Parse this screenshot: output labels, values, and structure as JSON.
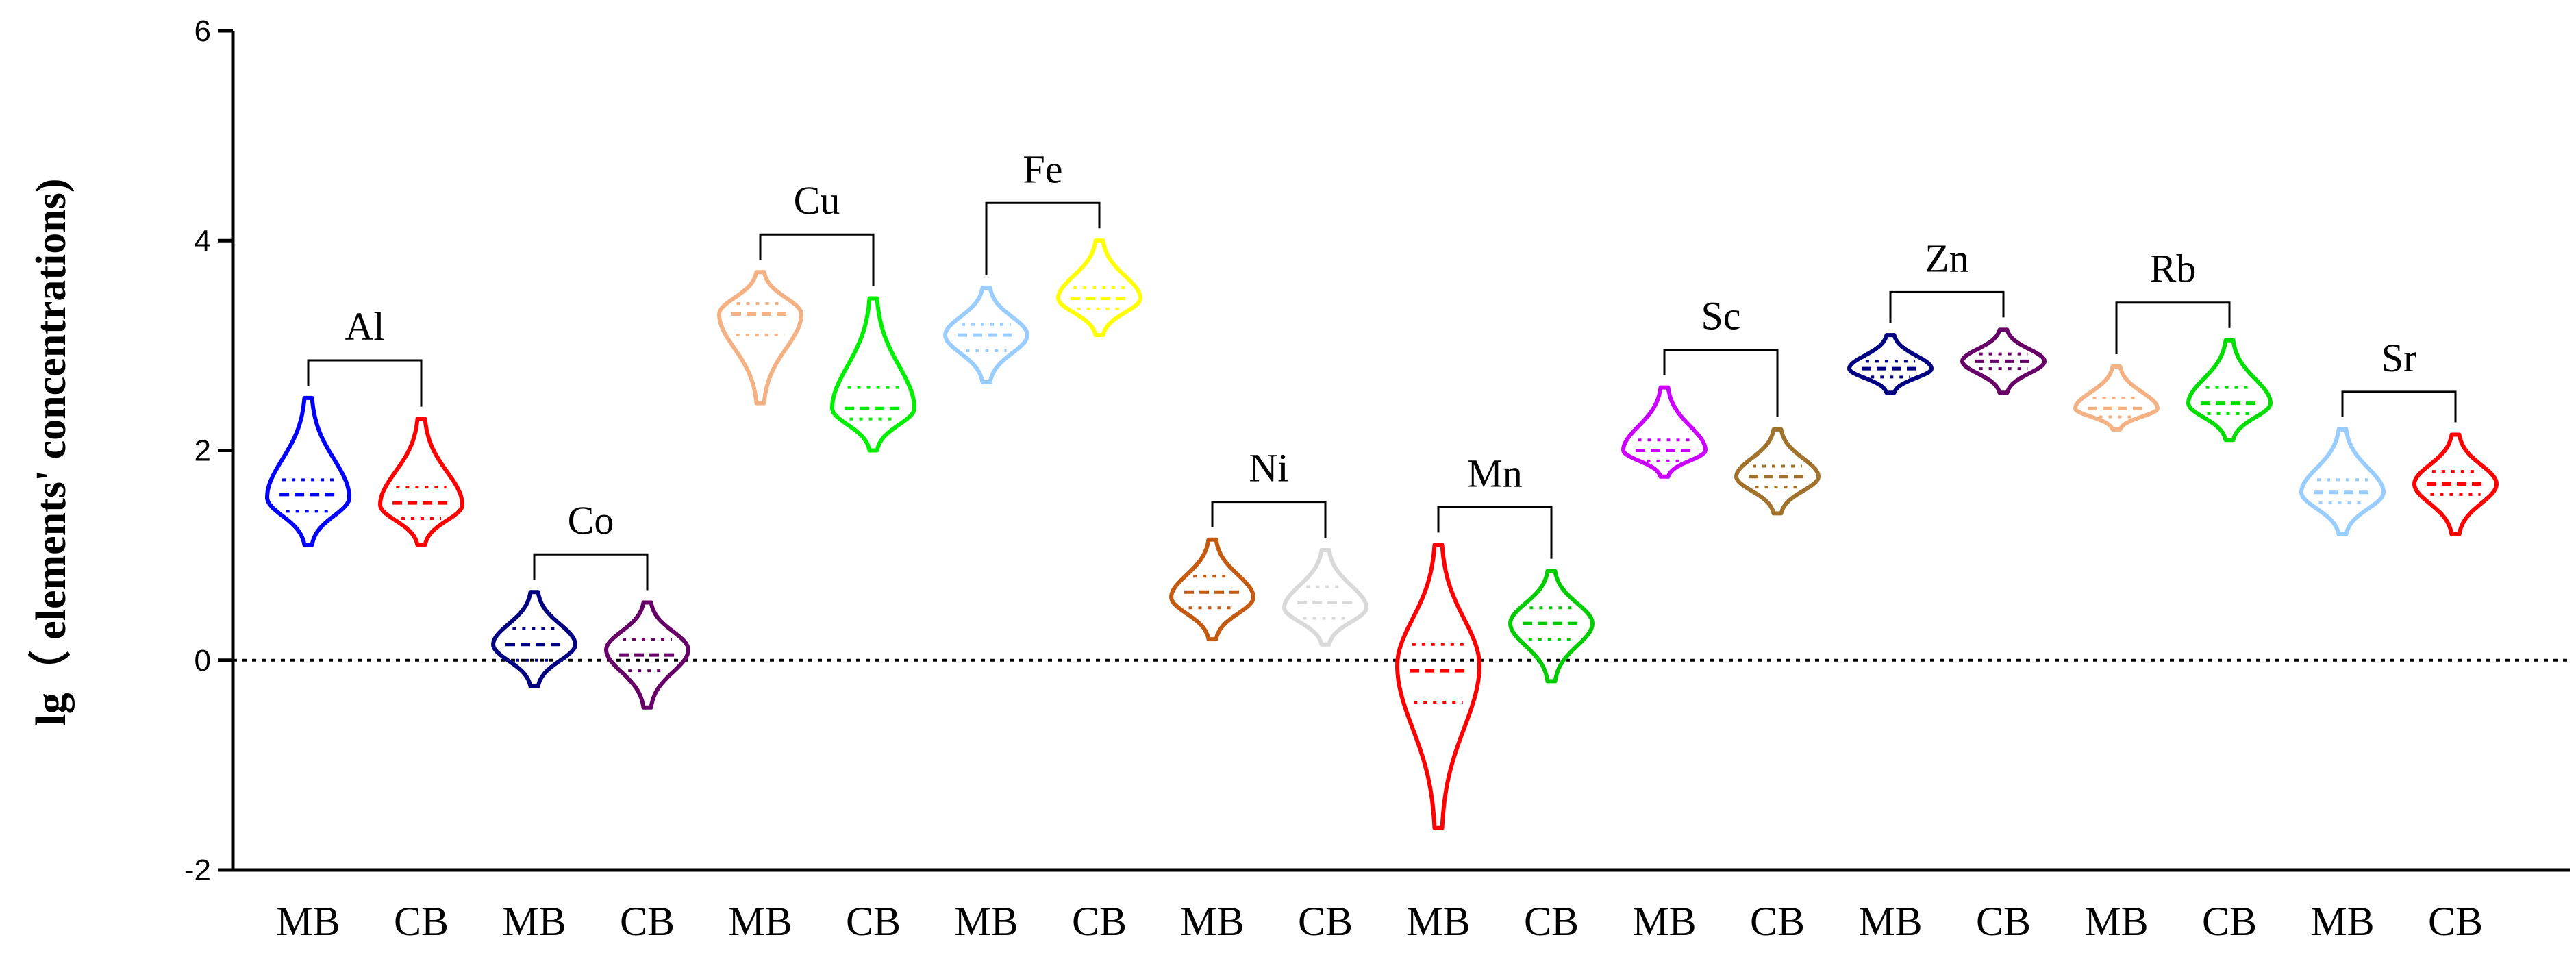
{
  "chart_data": {
    "type": "violin",
    "ylabel": "lg（ elements' concentrations)",
    "xlabel": "",
    "ylim": [
      -2,
      6
    ],
    "yticks": [
      "6",
      "4",
      "2",
      "0",
      "-2"
    ],
    "reference_line_y": 0,
    "groups": [
      {
        "element": "Al",
        "series": [
          {
            "category": "MB",
            "color": "#0000ff",
            "median": 1.58,
            "q1": 1.42,
            "q3": 1.72,
            "min": 1.1,
            "max": 2.5,
            "mode": 1.55
          },
          {
            "category": "CB",
            "color": "#ff0000",
            "median": 1.5,
            "q1": 1.35,
            "q3": 1.65,
            "min": 1.1,
            "max": 2.3,
            "mode": 1.48
          }
        ]
      },
      {
        "element": "Co",
        "series": [
          {
            "category": "MB",
            "color": "#000080",
            "median": 0.15,
            "q1": 0.0,
            "q3": 0.3,
            "min": -0.25,
            "max": 0.65,
            "mode": 0.15
          },
          {
            "category": "CB",
            "color": "#660066",
            "median": 0.05,
            "q1": -0.1,
            "q3": 0.2,
            "min": -0.45,
            "max": 0.55,
            "mode": 0.1
          }
        ]
      },
      {
        "element": "Cu",
        "series": [
          {
            "category": "MB",
            "color": "#f4b183",
            "median": 3.3,
            "q1": 3.1,
            "q3": 3.4,
            "min": 2.45,
            "max": 3.7,
            "mode": 3.3
          },
          {
            "category": "CB",
            "color": "#00ee00",
            "median": 2.4,
            "q1": 2.3,
            "q3": 2.6,
            "min": 2.0,
            "max": 3.45,
            "mode": 2.4
          }
        ]
      },
      {
        "element": "Fe",
        "series": [
          {
            "category": "MB",
            "color": "#99ccff",
            "median": 3.1,
            "q1": 2.95,
            "q3": 3.2,
            "min": 2.65,
            "max": 3.55,
            "mode": 3.1
          },
          {
            "category": "CB",
            "color": "#ffff00",
            "median": 3.45,
            "q1": 3.35,
            "q3": 3.55,
            "min": 3.1,
            "max": 4.0,
            "mode": 3.45
          }
        ]
      },
      {
        "element": "Ni",
        "series": [
          {
            "category": "MB",
            "color": "#c55a11",
            "median": 0.65,
            "q1": 0.5,
            "q3": 0.8,
            "min": 0.2,
            "max": 1.15,
            "mode": 0.6
          },
          {
            "category": "CB",
            "color": "#d9d9d9",
            "median": 0.55,
            "q1": 0.4,
            "q3": 0.7,
            "min": 0.15,
            "max": 1.05,
            "mode": 0.5
          }
        ]
      },
      {
        "element": "Mn",
        "series": [
          {
            "category": "MB",
            "color": "#ff0000",
            "median": -0.1,
            "q1": -0.4,
            "q3": 0.15,
            "min": -1.6,
            "max": 1.1,
            "mode": -0.05
          },
          {
            "category": "CB",
            "color": "#00cc00",
            "median": 0.35,
            "q1": 0.2,
            "q3": 0.5,
            "min": -0.2,
            "max": 0.85,
            "mode": 0.35
          }
        ]
      },
      {
        "element": "Sc",
        "series": [
          {
            "category": "MB",
            "color": "#cc00ff",
            "median": 2.0,
            "q1": 1.9,
            "q3": 2.1,
            "min": 1.75,
            "max": 2.6,
            "mode": 2.0
          },
          {
            "category": "CB",
            "color": "#a0722b",
            "median": 1.75,
            "q1": 1.65,
            "q3": 1.85,
            "min": 1.4,
            "max": 2.2,
            "mode": 1.75
          }
        ]
      },
      {
        "element": "Zn",
        "series": [
          {
            "category": "MB",
            "color": "#000080",
            "median": 2.78,
            "q1": 2.7,
            "q3": 2.85,
            "min": 2.55,
            "max": 3.1,
            "mode": 2.78
          },
          {
            "category": "CB",
            "color": "#660066",
            "median": 2.85,
            "q1": 2.78,
            "q3": 2.92,
            "min": 2.55,
            "max": 3.15,
            "mode": 2.85
          }
        ]
      },
      {
        "element": "Rb",
        "series": [
          {
            "category": "MB",
            "color": "#f4b183",
            "median": 2.4,
            "q1": 2.32,
            "q3": 2.5,
            "min": 2.2,
            "max": 2.8,
            "mode": 2.4
          },
          {
            "category": "CB",
            "color": "#00dd00",
            "median": 2.45,
            "q1": 2.35,
            "q3": 2.6,
            "min": 2.1,
            "max": 3.05,
            "mode": 2.45
          }
        ]
      },
      {
        "element": "Sr",
        "series": [
          {
            "category": "MB",
            "color": "#99ccff",
            "median": 1.6,
            "q1": 1.5,
            "q3": 1.72,
            "min": 1.2,
            "max": 2.2,
            "mode": 1.6
          },
          {
            "category": "CB",
            "color": "#ff0000",
            "median": 1.68,
            "q1": 1.58,
            "q3": 1.8,
            "min": 1.2,
            "max": 2.15,
            "mode": 1.68
          }
        ]
      }
    ]
  }
}
